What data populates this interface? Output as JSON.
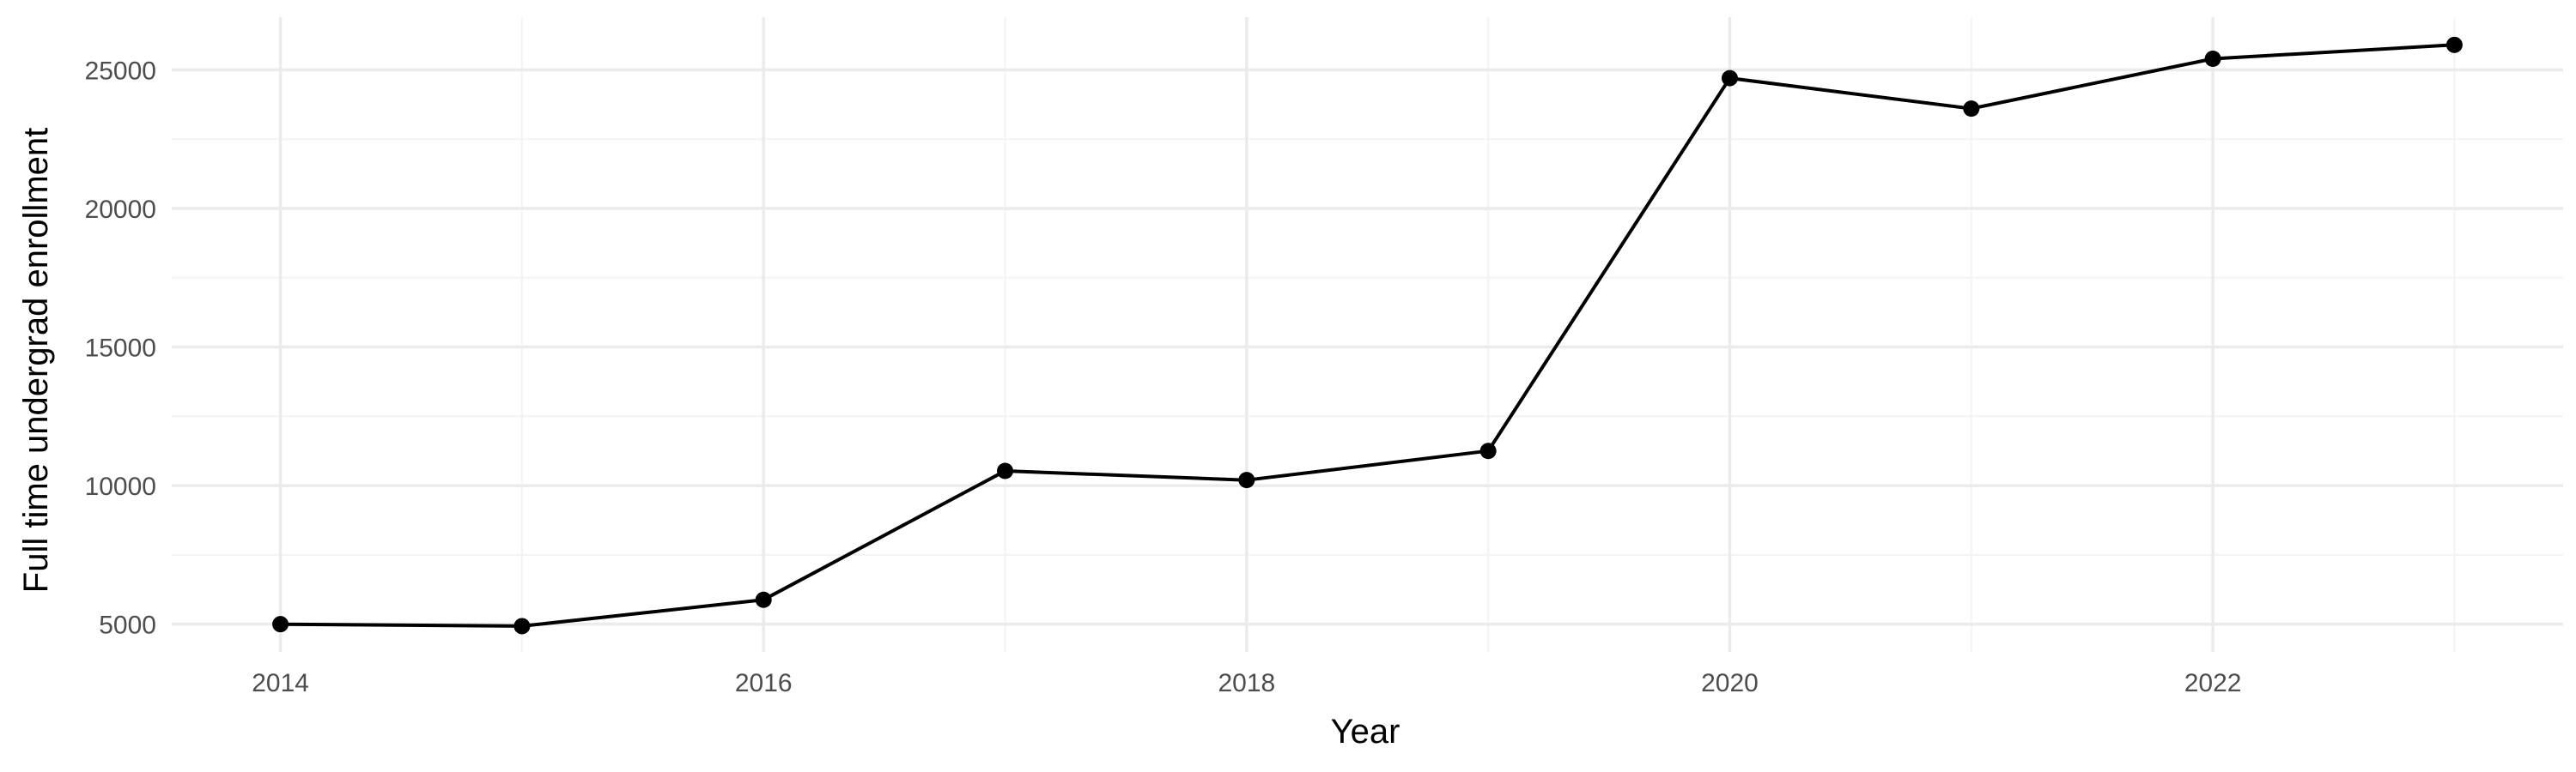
{
  "chart_data": {
    "type": "line",
    "title": "",
    "xlabel": "Year",
    "ylabel": "Full time undergrad enrollment",
    "x": [
      2014,
      2015,
      2016,
      2017,
      2018,
      2019,
      2020,
      2021,
      2022,
      2023
    ],
    "series": [
      {
        "values": [
          5000,
          4930,
          5880,
          10530,
          10200,
          11250,
          24700,
          23600,
          25400,
          25900
        ]
      }
    ],
    "x_ticks": [
      "2014",
      "2016",
      "2018",
      "2020",
      "2022"
    ],
    "y_ticks": [
      "5000",
      "10000",
      "15000",
      "20000",
      "25000"
    ],
    "xlim": [
      2013.55,
      2023.45
    ],
    "ylim": [
      4000,
      26900
    ],
    "grid": true,
    "legend": "none",
    "colors": {
      "line": "#000000",
      "point": "#000000",
      "grid_major": "#ebebeb",
      "grid_minor": "#f4f4f4",
      "background": "#ffffff"
    }
  }
}
